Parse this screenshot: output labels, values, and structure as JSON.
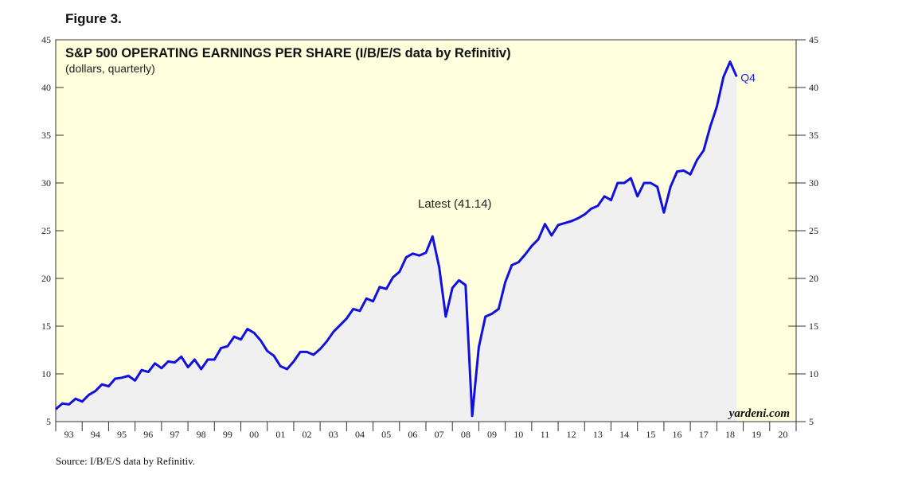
{
  "figure_label": "Figure 3.",
  "source": "Source: I/B/E/S data by Refinitiv.",
  "colors": {
    "plot_background": "#ffffdd",
    "area_fill": "#f0f0f0",
    "line": "#1010e0",
    "q4_label": "#1a1aff",
    "axis": "#333333"
  },
  "chart_data": {
    "type": "line",
    "title": "S&P 500 OPERATING EARNINGS PER SHARE (I/B/E/S data by Refinitiv)",
    "subtitle": "(dollars, quarterly)",
    "annotation": "Latest (41.14)",
    "end_label": "Q4",
    "brand": "yardeni.com",
    "xlabel": "",
    "ylabel": "",
    "ylim": [
      5,
      45
    ],
    "yticks": [
      5,
      10,
      15,
      20,
      25,
      30,
      35,
      40,
      45
    ],
    "x_range": [
      1993,
      2021
    ],
    "year_labels": [
      "93",
      "94",
      "95",
      "96",
      "97",
      "98",
      "99",
      "00",
      "01",
      "02",
      "03",
      "04",
      "05",
      "06",
      "07",
      "08",
      "09",
      "10",
      "11",
      "12",
      "13",
      "14",
      "15",
      "16",
      "17",
      "18",
      "19",
      "20"
    ],
    "series": [
      {
        "name": "S&P 500 Operating EPS",
        "x": [
          1993.0,
          1993.25,
          1993.5,
          1993.75,
          1994.0,
          1994.25,
          1994.5,
          1994.75,
          1995.0,
          1995.25,
          1995.5,
          1995.75,
          1996.0,
          1996.25,
          1996.5,
          1996.75,
          1997.0,
          1997.25,
          1997.5,
          1997.75,
          1998.0,
          1998.25,
          1998.5,
          1998.75,
          1999.0,
          1999.25,
          1999.5,
          1999.75,
          2000.0,
          2000.25,
          2000.5,
          2000.75,
          2001.0,
          2001.25,
          2001.5,
          2001.75,
          2002.0,
          2002.25,
          2002.5,
          2002.75,
          2003.0,
          2003.25,
          2003.5,
          2003.75,
          2004.0,
          2004.25,
          2004.5,
          2004.75,
          2005.0,
          2005.25,
          2005.5,
          2005.75,
          2006.0,
          2006.25,
          2006.5,
          2006.75,
          2007.0,
          2007.25,
          2007.5,
          2007.75,
          2008.0,
          2008.25,
          2008.5,
          2008.75,
          2009.0,
          2009.25,
          2009.5,
          2009.75,
          2010.0,
          2010.25,
          2010.5,
          2010.75,
          2011.0,
          2011.25,
          2011.5,
          2011.75,
          2012.0,
          2012.25,
          2012.5,
          2012.75,
          2013.0,
          2013.25,
          2013.5,
          2013.75,
          2014.0,
          2014.25,
          2014.5,
          2014.75,
          2015.0,
          2015.25,
          2015.5,
          2015.75,
          2016.0,
          2016.25,
          2016.5,
          2016.75,
          2017.0,
          2017.25,
          2017.5,
          2017.75,
          2018.0,
          2018.25,
          2018.5,
          2018.75
        ],
        "values": [
          6.3,
          6.9,
          6.8,
          7.4,
          7.1,
          7.8,
          8.2,
          8.9,
          8.7,
          9.5,
          9.6,
          9.8,
          9.3,
          10.4,
          10.2,
          11.1,
          10.6,
          11.3,
          11.2,
          11.8,
          10.7,
          11.5,
          10.5,
          11.5,
          11.5,
          12.7,
          12.9,
          13.9,
          13.6,
          14.7,
          14.3,
          13.5,
          12.4,
          11.9,
          10.8,
          10.5,
          11.3,
          12.3,
          12.3,
          12.0,
          12.6,
          13.4,
          14.4,
          15.1,
          15.8,
          16.8,
          16.6,
          17.9,
          17.6,
          19.1,
          18.9,
          20.1,
          20.7,
          22.2,
          22.6,
          22.4,
          22.7,
          24.4,
          21.2,
          16.0,
          19.0,
          19.8,
          19.3,
          5.6,
          12.8,
          16.0,
          16.3,
          16.8,
          19.6,
          21.4,
          21.7,
          22.5,
          23.4,
          24.1,
          25.7,
          24.5,
          25.6,
          25.8,
          26.0,
          26.3,
          26.7,
          27.3,
          27.6,
          28.6,
          28.2,
          30.0,
          30.0,
          30.5,
          28.6,
          30.0,
          30.0,
          29.6,
          26.9,
          29.6,
          31.2,
          31.3,
          30.9,
          32.4,
          33.4,
          35.9,
          38.0,
          41.1,
          42.7,
          41.14
        ]
      }
    ]
  }
}
